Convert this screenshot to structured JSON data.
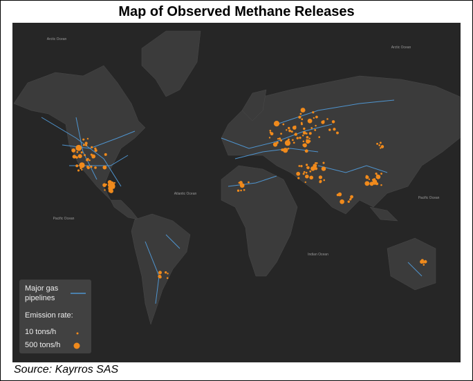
{
  "title": "Map of Observed Methane Releases",
  "map_labels": [
    "Arctic Ocean",
    "Arctic Ocean",
    "Pacific Ocean",
    "Atlantic Ocean",
    "Indian Ocean",
    "Pacific Ocean"
  ],
  "legend": {
    "pipelines": "Major gas pipelines",
    "emission_title": "Emission rate:",
    "small": "10 tons/h",
    "large": "500 tons/h"
  },
  "source": "Source: Kayrros SAS"
}
